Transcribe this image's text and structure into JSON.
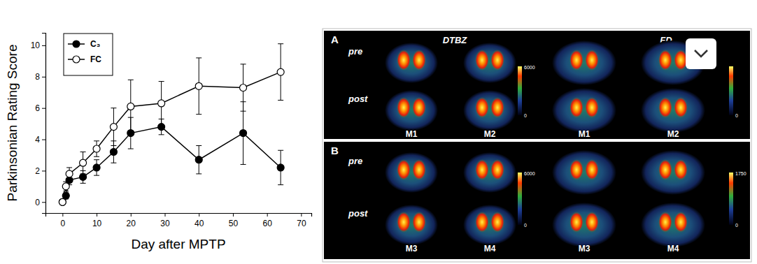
{
  "chart_data": {
    "type": "line",
    "x_label": "Day after MPTP",
    "y_label": "Parkinsonian Rating Score",
    "x": [
      0,
      1,
      2,
      6,
      10,
      15,
      20,
      29,
      40,
      53,
      64
    ],
    "series": [
      {
        "name": "C₃",
        "color": "#000000",
        "marker": "circle-filled",
        "line_style": "solid",
        "values": [
          0,
          0.4,
          1.4,
          1.6,
          2.2,
          3.2,
          4.4,
          4.8,
          2.7,
          4.4,
          2.2
        ],
        "errors": [
          0.1,
          0.2,
          0.3,
          0.4,
          0.5,
          0.7,
          1.0,
          0.5,
          0.9,
          2.0,
          1.1
        ]
      },
      {
        "name": "FC",
        "color": "#000000",
        "marker": "circle-open",
        "line_style": "solid",
        "values": [
          0,
          1.0,
          1.8,
          2.5,
          3.4,
          4.8,
          6.1,
          6.3,
          7.4,
          7.3,
          8.3
        ],
        "errors": [
          0.1,
          0.3,
          0.4,
          0.7,
          0.5,
          1.2,
          1.7,
          1.4,
          1.8,
          1.5,
          1.8
        ]
      }
    ],
    "xlim": [
      -5,
      73
    ],
    "xticks": [
      0,
      10,
      20,
      30,
      40,
      50,
      60,
      70
    ],
    "ylim": [
      -0.7,
      10.8
    ],
    "yticks": [
      0,
      2,
      4,
      6,
      8,
      10
    ],
    "legend": "upper left",
    "grid": false
  },
  "pet_figure": {
    "panels": [
      {
        "label": "A",
        "tracers": [
          "DTBZ",
          "FD"
        ],
        "rows": [
          "pre",
          "post"
        ],
        "subjects": [
          "M1",
          "M2",
          "M1",
          "M2"
        ],
        "colorbars": [
          {
            "max": 6000,
            "min": 0
          },
          {
            "min": 0
          }
        ]
      },
      {
        "label": "B",
        "rows": [
          "pre",
          "post"
        ],
        "subjects": [
          "M3",
          "M4",
          "M3",
          "M4"
        ],
        "colorbars": [
          {
            "max": 6000,
            "min": 0
          },
          {
            "max": 1750,
            "min": 0
          }
        ]
      }
    ]
  }
}
